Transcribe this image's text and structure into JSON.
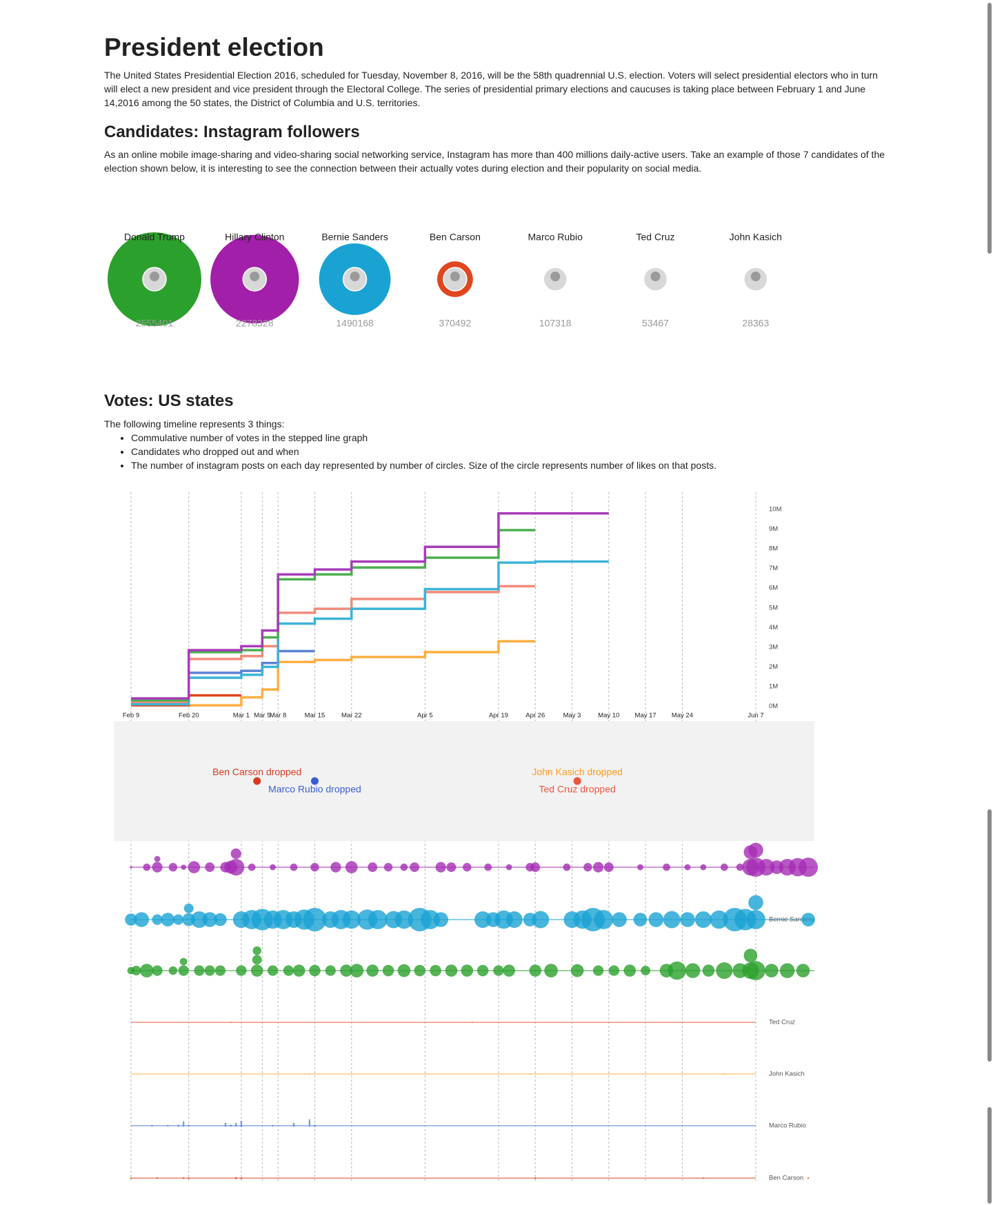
{
  "header": {
    "title": "President election",
    "intro": "The United States Presidential Election 2016, scheduled for Tuesday, November 8, 2016, will be the 58th quadrennial U.S. election. Voters will select presidential electors who in turn will elect a new president and vice president through the Electoral College. The series of presidential primary elections and caucuses is taking place between February 1 and June 14,2016 among the 50 states, the District of Columbia and U.S. territories."
  },
  "sections": [
    {
      "heading": "Candidates: Instagram followers",
      "text": "As an online mobile image-sharing and video-sharing social networking service, Instagram has more than 400 millions daily-active users. Take an example of those 7 candidates of the election shown below, it is interesting to see the connection between their actually votes during election and their popularity on social media."
    },
    {
      "heading": "Votes: US states",
      "text": "The following timeline represents 3 things:",
      "items": [
        "Commulative number of votes in the stepped line graph",
        "Candidates who dropped out and when",
        "The number of instagram posts on each day represented by number of circles. Size of the circle represents number of likes on that posts."
      ]
    }
  ],
  "chart_data": [
    {
      "type": "bubble",
      "categories": [
        "Donald Trump",
        "Hillary Clinton",
        "Bernie Sanders",
        "Ben Carson",
        "Marco Rubio",
        "Ted Cruz",
        "John Kasich"
      ],
      "values": [
        2555401,
        2278328,
        1490168,
        370492,
        107318,
        53467,
        28363
      ],
      "colors": [
        "#2ca02c",
        "#a21fa9",
        "#1aa3d2",
        "#e0461f",
        "#8b1a1a",
        "#7a1f2a",
        "#888888"
      ]
    },
    {
      "type": "step",
      "grid": true,
      "xlim": [
        "Feb 9",
        "Jun 7"
      ],
      "xticks": [
        "Feb 9",
        "Feb 20",
        "Mar 1",
        "Mar 5",
        "Mar 8",
        "Mar 15",
        "Mar 22",
        "Apr 5",
        "Apr 19",
        "Apr 26",
        "May 3",
        "May 10",
        "May 17",
        "May 24",
        "Jun 7"
      ],
      "ylim": [
        0,
        10000000
      ],
      "yticks": [
        {
          "value": 0,
          "label": "0M"
        },
        {
          "value": 1000000,
          "label": "1M"
        },
        {
          "value": 2000000,
          "label": "2M"
        },
        {
          "value": 3000000,
          "label": "3M"
        },
        {
          "value": 4000000,
          "label": "4M"
        },
        {
          "value": 5000000,
          "label": "5M"
        },
        {
          "value": 6000000,
          "label": "6M"
        },
        {
          "value": 7000000,
          "label": "7M"
        },
        {
          "value": 8000000,
          "label": "8M"
        },
        {
          "value": 9000000,
          "label": "9M"
        },
        {
          "value": 10000000,
          "label": "10M"
        }
      ],
      "series": [
        {
          "color": "#ffae42",
          "x": [
            "Feb 9",
            "Mar 1",
            "Mar 5",
            "Mar 8",
            "Mar 15",
            "Mar 22",
            "Apr 5",
            "Apr 19",
            "Apr 26"
          ],
          "values": [
            50000,
            450000,
            850000,
            2250000,
            2350000,
            2500000,
            2750000,
            3300000,
            3300000
          ]
        },
        {
          "color": "#e0461f",
          "x": [
            "Feb 9",
            "Feb 20",
            "Mar 1"
          ],
          "values": [
            50000,
            550000,
            550000
          ]
        },
        {
          "color": "#5b82d6",
          "x": [
            "Feb 9",
            "Feb 20",
            "Mar 1",
            "Mar 5",
            "Mar 8",
            "Mar 15"
          ],
          "values": [
            200000,
            1700000,
            1800000,
            2200000,
            2800000,
            2800000
          ]
        },
        {
          "color": "#f28b7a",
          "x": [
            "Feb 9",
            "Feb 20",
            "Mar 1",
            "Mar 5",
            "Mar 8",
            "Mar 15",
            "Mar 22",
            "Apr 5",
            "Apr 19",
            "Apr 26"
          ],
          "values": [
            200000,
            2400000,
            2550000,
            3050000,
            4750000,
            4950000,
            5450000,
            5800000,
            6100000,
            6100000
          ]
        },
        {
          "color": "#3cb4d8",
          "x": [
            "Feb 9",
            "Feb 20",
            "Mar 1",
            "Mar 5",
            "Mar 8",
            "Mar 15",
            "Mar 22",
            "Apr 5",
            "Apr 19",
            "Apr 26",
            "May 10"
          ],
          "values": [
            100000,
            1450000,
            1600000,
            2000000,
            4200000,
            4450000,
            4950000,
            5950000,
            7300000,
            7350000,
            7350000
          ]
        },
        {
          "color": "#4caf50",
          "x": [
            "Feb 9",
            "Feb 20",
            "Mar 1",
            "Mar 5",
            "Mar 8",
            "Mar 15",
            "Mar 22",
            "Apr 5",
            "Apr 19",
            "Apr 26"
          ],
          "values": [
            300000,
            2750000,
            2850000,
            3500000,
            6450000,
            6700000,
            7050000,
            7550000,
            8950000,
            8950000
          ]
        },
        {
          "color": "#a83cb8",
          "x": [
            "Feb 9",
            "Feb 20",
            "Mar 1",
            "Mar 5",
            "Mar 8",
            "Mar 15",
            "Mar 22",
            "Apr 5",
            "Apr 19",
            "May 10"
          ],
          "values": [
            400000,
            2850000,
            3050000,
            3850000,
            6700000,
            6950000,
            7350000,
            8100000,
            9800000,
            9800000
          ]
        }
      ]
    },
    {
      "type": "events",
      "xlim": [
        "Feb 9",
        "Jun 7"
      ],
      "x": [
        "Mar 4",
        "Mar 15",
        "May 4",
        "May 4"
      ],
      "labels": [
        "Ben Carson dropped",
        "Marco Rubio dropped",
        "John Kasich dropped",
        "Ted Cruz dropped"
      ],
      "colors": [
        "#d93a1e",
        "#3a5fcd",
        "#ff9a1a",
        "#e9573f"
      ]
    },
    {
      "type": "swarm",
      "xlim": [
        "Feb 9",
        "Jun 7"
      ],
      "series": [
        {
          "name": null,
          "color": "#a52db5",
          "x": [
            "Feb 9",
            "Feb 12",
            "Feb 14",
            "Feb 14",
            "Feb 17",
            "Feb 19",
            "Feb 21",
            "Feb 24",
            "Feb 27",
            "Feb 28",
            "Feb 29",
            "Feb 29",
            "Mar 3",
            "Mar 7",
            "Mar 11",
            "Mar 15",
            "Mar 19",
            "Mar 22",
            "Mar 26",
            "Mar 29",
            "Apr 1",
            "Apr 3",
            "Apr 8",
            "Apr 10",
            "Apr 13",
            "Apr 17",
            "Apr 21",
            "Apr 25",
            "Apr 26",
            "May 2",
            "May 6",
            "May 8",
            "May 10",
            "May 16",
            "May 21",
            "May 25",
            "May 28",
            "Jun 1",
            "Jun 4",
            "Jun 6",
            "Jun 6",
            "Jun 7",
            "Jun 7",
            "Jun 9",
            "Jun 11",
            "Jun 13",
            "Jun 15",
            "Jun 17"
          ],
          "values": [
            3000,
            30000,
            60000,
            20000,
            40000,
            15000,
            80000,
            50000,
            60000,
            90000,
            150000,
            60000,
            30000,
            20000,
            30000,
            40000,
            60000,
            80000,
            50000,
            40000,
            30000,
            50000,
            60000,
            50000,
            40000,
            30000,
            20000,
            40000,
            50000,
            30000,
            40000,
            60000,
            50000,
            20000,
            30000,
            20000,
            20000,
            30000,
            30000,
            150000,
            100000,
            200000,
            120000,
            150000,
            100000,
            150000,
            180000,
            200000
          ]
        },
        {
          "name": "Bernie Sanders",
          "color": "#1aa3d3",
          "x": [
            "Feb 9",
            "Feb 11",
            "Feb 14",
            "Feb 16",
            "Feb 18",
            "Feb 20",
            "Feb 20",
            "Feb 22",
            "Feb 24",
            "Feb 26",
            "Mar 1",
            "Mar 3",
            "Mar 5",
            "Mar 7",
            "Mar 9",
            "Mar 11",
            "Mar 13",
            "Mar 15",
            "Mar 18",
            "Mar 20",
            "Mar 22",
            "Mar 25",
            "Mar 27",
            "Mar 30",
            "Apr 1",
            "Apr 4",
            "Apr 6",
            "Apr 8",
            "Apr 16",
            "Apr 18",
            "Apr 20",
            "Apr 22",
            "Apr 25",
            "Apr 27",
            "May 3",
            "May 5",
            "May 7",
            "May 9",
            "May 12",
            "May 16",
            "May 19",
            "May 22",
            "May 25",
            "May 28",
            "May 31",
            "Jun 3",
            "Jun 5",
            "Jun 7",
            "Jun 7",
            "Jun 17"
          ],
          "values": [
            80000,
            120000,
            60000,
            100000,
            60000,
            90000,
            50000,
            150000,
            120000,
            90000,
            150000,
            200000,
            250000,
            180000,
            200000,
            150000,
            220000,
            300000,
            150000,
            200000,
            180000,
            220000,
            200000,
            160000,
            180000,
            300000,
            200000,
            120000,
            150000,
            120000,
            180000,
            150000,
            100000,
            160000,
            150000,
            180000,
            300000,
            200000,
            120000,
            100000,
            120000,
            160000,
            120000,
            150000,
            180000,
            300000,
            250000,
            200000,
            120000,
            100000
          ]
        },
        {
          "name": null,
          "color": "#2ca02c",
          "x": [
            "Feb 9",
            "Feb 10",
            "Feb 12",
            "Feb 14",
            "Feb 17",
            "Feb 19",
            "Feb 19",
            "Feb 22",
            "Feb 24",
            "Feb 26",
            "Mar 1",
            "Mar 4",
            "Mar 4",
            "Mar 4",
            "Mar 7",
            "Mar 10",
            "Mar 12",
            "Mar 15",
            "Mar 18",
            "Mar 21",
            "Mar 23",
            "Mar 26",
            "Mar 29",
            "Apr 1",
            "Apr 4",
            "Apr 7",
            "Apr 10",
            "Apr 13",
            "Apr 16",
            "Apr 19",
            "Apr 21",
            "Apr 26",
            "Apr 29",
            "May 4",
            "May 8",
            "May 11",
            "May 14",
            "May 17",
            "May 21",
            "May 23",
            "May 26",
            "May 29",
            "Jun 1",
            "Jun 4",
            "Jun 6",
            "Jun 6",
            "Jun 7",
            "Jun 10",
            "Jun 13",
            "Jun 16"
          ],
          "values": [
            30000,
            50000,
            100000,
            60000,
            40000,
            60000,
            30000,
            60000,
            60000,
            60000,
            60000,
            80000,
            50000,
            40000,
            60000,
            60000,
            80000,
            70000,
            60000,
            80000,
            100000,
            80000,
            70000,
            90000,
            70000,
            70000,
            80000,
            80000,
            70000,
            60000,
            80000,
            80000,
            100000,
            90000,
            60000,
            60000,
            80000,
            50000,
            100000,
            180000,
            120000,
            80000,
            150000,
            120000,
            150000,
            100000,
            200000,
            100000,
            120000,
            100000
          ]
        },
        {
          "name": "Ted Cruz",
          "color": "#e8553b",
          "x": [
            "Feb 28",
            "Apr 14"
          ],
          "values": [
            800,
            800
          ]
        },
        {
          "name": "John Kasich",
          "color": "#ffad45",
          "x": [
            "Mar 14",
            "Apr 25",
            "Jun 1"
          ],
          "values": [
            600,
            600,
            600
          ]
        },
        {
          "name": "Marco Rubio",
          "color": "#4a7bd9",
          "x": [
            "Feb 13",
            "Feb 16",
            "Feb 18",
            "Feb 19",
            "Feb 19",
            "Feb 19",
            "Feb 20",
            "Feb 27",
            "Feb 27",
            "Feb 28",
            "Feb 29",
            "Feb 29",
            "Mar 1",
            "Mar 1",
            "Mar 1",
            "Mar 7",
            "Mar 11",
            "Mar 11",
            "Mar 14",
            "Mar 14",
            "Mar 14",
            "Mar 14",
            "Mar 15"
          ],
          "values": [
            1500,
            1500,
            2000,
            2000,
            2000,
            1500,
            1500,
            2000,
            2000,
            2000,
            2000,
            2000,
            2500,
            2000,
            2000,
            1500,
            2000,
            2000,
            2000,
            2000,
            2000,
            1500,
            2000
          ]
        },
        {
          "name": "Ben Carson",
          "color": "#e0441e",
          "x": [
            "Feb 9",
            "Feb 14",
            "Feb 19",
            "Feb 20",
            "Feb 29",
            "Mar 1",
            "Apr 26",
            "May 28",
            "Jun 17"
          ],
          "values": [
            1500,
            1500,
            1500,
            1500,
            2500,
            2000,
            1500,
            1200,
            1500
          ]
        }
      ]
    }
  ]
}
